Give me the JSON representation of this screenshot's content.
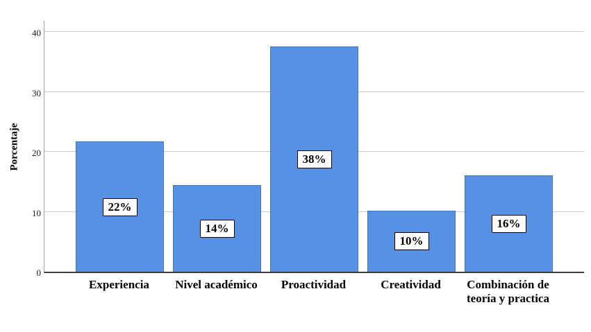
{
  "chart_data": {
    "type": "bar",
    "title": "",
    "ylabel": "Porcentaje",
    "xlabel": "",
    "categories": [
      "Experiencia",
      "Nivel académico",
      "Proactividad",
      "Creatividad",
      "Combinación de teoría y practica"
    ],
    "values": [
      21.7,
      14.4,
      37.6,
      10.2,
      16.1
    ],
    "bar_labels": [
      "22%",
      "14%",
      "38%",
      "10%",
      "16%"
    ],
    "ylim": [
      0,
      40
    ],
    "yticks": [
      0,
      10,
      20,
      30,
      40
    ],
    "grid": "horizontal-only",
    "legend_position": "none",
    "colors": {
      "bar_fill": "#5592e4",
      "bar_border": "#4377c4",
      "gridline": "#c9c9c9",
      "y_axis_line": "#a3a3a3",
      "x_axis_line": "#3a3a3a",
      "label_box_bg": "#ffffff",
      "label_box_border": "#000000",
      "background": "#ffffff"
    }
  }
}
